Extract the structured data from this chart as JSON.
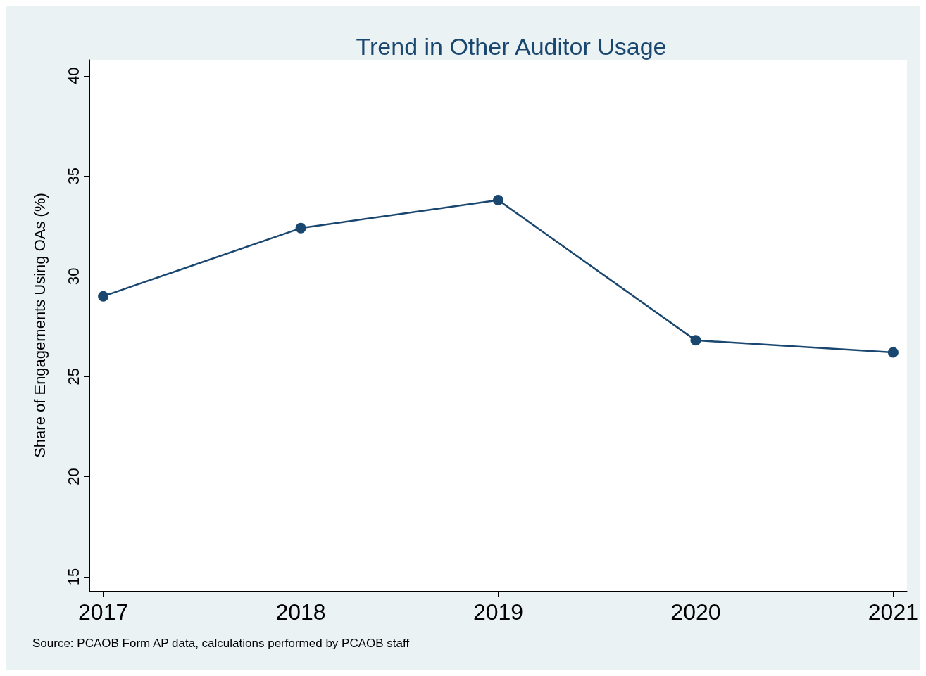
{
  "chart_data": {
    "type": "line",
    "title": "Trend in Other Auditor Usage",
    "ylabel": "Share of Engagements Using OAs (%)",
    "x": [
      2017,
      2018,
      2019,
      2020,
      2021
    ],
    "series": [
      {
        "color": "#1a476f",
        "values": [
          29.0,
          32.4,
          33.8,
          26.8,
          26.2
        ]
      }
    ],
    "xlim": [
      2016.93,
      2021.07
    ],
    "xticks": [
      2017,
      2018,
      2019,
      2020,
      2021
    ],
    "ylim": [
      14.3,
      40.8
    ],
    "yticks": [
      15,
      20,
      25,
      30,
      35,
      40
    ],
    "grid": false,
    "marker": "circle",
    "line_style": "solid",
    "annotations": [
      "Source: PCAOB Form AP data, calculations performed by PCAOB staff"
    ]
  }
}
